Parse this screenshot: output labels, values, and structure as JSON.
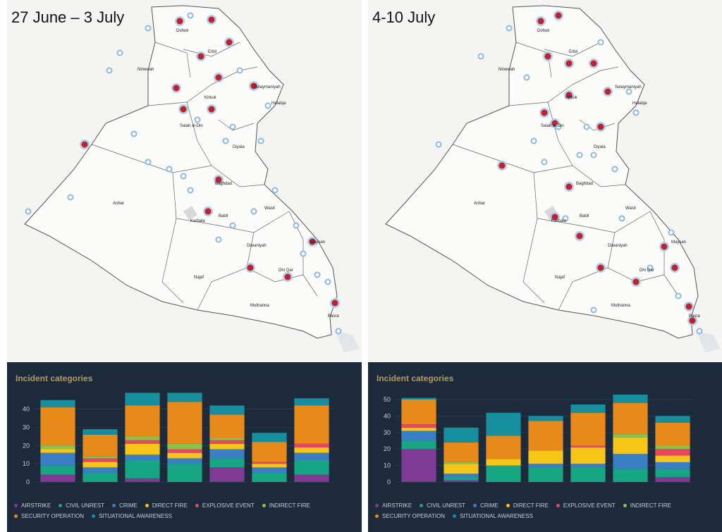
{
  "panels": [
    {
      "period": "27 June – 3 July",
      "dashboard_title": "Incident categories",
      "map_labels": [
        "Ninewah",
        "Dohuk",
        "Erbil",
        "Kirkuk",
        "Sulaymaniyah",
        "Halabja",
        "Salah al-Din",
        "Diyala",
        "Anbar",
        "Baghdad",
        "Karbala",
        "Babil",
        "Wasit",
        "Diwaniyah",
        "Maysan",
        "Dhi Qar",
        "Najaf",
        "Muthanna",
        "Basra"
      ]
    },
    {
      "period": "4-10 July",
      "dashboard_title": "Incident categories",
      "map_labels": [
        "Ninewah",
        "Dohuk",
        "Erbil",
        "Kirkuk",
        "Sulaymaniyah",
        "Halabja",
        "Salah al-Din",
        "Diyala",
        "Anbar",
        "Baghdad",
        "Karbala",
        "Babil",
        "Wasit",
        "Diwaniyah",
        "Maysan",
        "Dhi Qar",
        "Najaf",
        "Muthanna",
        "Basra"
      ]
    }
  ],
  "legend": [
    {
      "label": "AIRSTRIKE",
      "color": "#7e3a95"
    },
    {
      "label": "CIVIL UNREST",
      "color": "#17a684"
    },
    {
      "label": "CRIME",
      "color": "#3a7fc4"
    },
    {
      "label": "DIRECT FIRE",
      "color": "#f5c518"
    },
    {
      "label": "EXPLOSIVE EVENT",
      "color": "#e8475f"
    },
    {
      "label": "INDIRECT FIRE",
      "color": "#8bc34a"
    },
    {
      "label": "SECURITY OPERATION",
      "color": "#e88a1a"
    },
    {
      "label": "SITUATIONAL AWARENESS",
      "color": "#168e9e"
    }
  ],
  "chart_data": [
    {
      "type": "bar",
      "stacked": true,
      "title": "Incident categories",
      "ylim": [
        0,
        48
      ],
      "yticks": [
        "0",
        "10",
        "20",
        "30",
        "40"
      ],
      "grid": true,
      "legend_position": "bottom",
      "series": [
        {
          "name": "AIRSTRIKE",
          "values": [
            4,
            0,
            2,
            0,
            8,
            0,
            4
          ]
        },
        {
          "name": "CIVIL UNREST",
          "values": [
            5,
            5,
            10,
            10,
            5,
            5,
            8
          ]
        },
        {
          "name": "CRIME",
          "values": [
            7,
            3,
            3,
            3,
            5,
            3,
            4
          ]
        },
        {
          "name": "DIRECT FIRE",
          "values": [
            2,
            3,
            6,
            3,
            3,
            2,
            3
          ]
        },
        {
          "name": "EXPLOSIVE EVENT",
          "values": [
            0,
            2,
            2,
            2,
            2,
            1,
            2
          ]
        },
        {
          "name": "INDIRECT FIRE",
          "values": [
            2,
            1,
            2,
            3,
            1,
            0,
            0
          ]
        },
        {
          "name": "SECURITY OPERATION",
          "values": [
            21,
            12,
            17,
            23,
            13,
            11,
            21
          ]
        },
        {
          "name": "SITUATIONAL AWARENESS",
          "values": [
            4,
            3,
            7,
            5,
            5,
            5,
            4
          ]
        }
      ]
    },
    {
      "type": "bar",
      "stacked": true,
      "title": "Incident categories",
      "ylim": [
        0,
        53
      ],
      "yticks": [
        "0",
        "10",
        "20",
        "30",
        "40",
        "50"
      ],
      "grid": true,
      "legend_position": "bottom",
      "series": [
        {
          "name": "AIRSTRIKE",
          "values": [
            20,
            1,
            0,
            0,
            0,
            0,
            3
          ]
        },
        {
          "name": "CIVIL UNREST",
          "values": [
            5,
            2,
            10,
            9,
            9,
            8,
            5
          ]
        },
        {
          "name": "CRIME",
          "values": [
            6,
            2,
            0,
            2,
            2,
            9,
            4
          ]
        },
        {
          "name": "DIRECT FIRE",
          "values": [
            2,
            6,
            4,
            8,
            10,
            10,
            4
          ]
        },
        {
          "name": "EXPLOSIVE EVENT",
          "values": [
            2,
            0,
            0,
            0,
            1,
            0,
            4
          ]
        },
        {
          "name": "INDIRECT FIRE",
          "values": [
            0,
            1,
            0,
            0,
            0,
            2,
            2
          ]
        },
        {
          "name": "SECURITY OPERATION",
          "values": [
            15,
            12,
            14,
            18,
            20,
            19,
            14
          ]
        },
        {
          "name": "SITUATIONAL AWARENESS",
          "values": [
            1,
            9,
            14,
            3,
            5,
            5,
            4
          ]
        }
      ]
    }
  ]
}
